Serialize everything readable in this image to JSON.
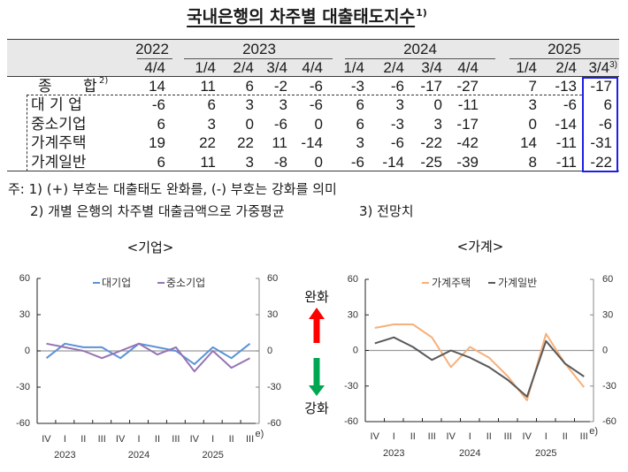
{
  "title": {
    "text": "국내은행의 차주별 대출태도지수",
    "note": "1)"
  },
  "table": {
    "years": [
      {
        "label": "2022"
      },
      {
        "label": "2023"
      },
      {
        "label": "2024"
      },
      {
        "label": "2025"
      }
    ],
    "quarters": [
      "4/4",
      "1/4",
      "2/4",
      "3/4",
      "4/4",
      "1/4",
      "2/4",
      "3/4",
      "4/4",
      "1/4",
      "2/4",
      "3/4"
    ],
    "last_quarter_note": "3)",
    "rows": [
      {
        "label": "종 합",
        "note": "2)",
        "values": [
          "14",
          "11",
          "6",
          "-2",
          "-6",
          "-3",
          "-6",
          "-17",
          "-27",
          "7",
          "-13",
          "-17"
        ]
      },
      {
        "label": "대 기 업",
        "values": [
          "-6",
          "6",
          "3",
          "3",
          "-6",
          "6",
          "3",
          "0",
          "-11",
          "3",
          "-6",
          "6"
        ]
      },
      {
        "label": "중소기업",
        "values": [
          "6",
          "3",
          "0",
          "-6",
          "0",
          "6",
          "-3",
          "3",
          "-17",
          "0",
          "-14",
          "-6"
        ]
      },
      {
        "label": "가계주택",
        "values": [
          "19",
          "22",
          "22",
          "11",
          "-14",
          "3",
          "-6",
          "-22",
          "-42",
          "14",
          "-11",
          "-31"
        ]
      },
      {
        "label": "가계일반",
        "values": [
          "6",
          "11",
          "3",
          "-8",
          "0",
          "-6",
          "-14",
          "-25",
          "-39",
          "8",
          "-11",
          "-22"
        ]
      }
    ],
    "highlight_color": "#1e1ee6"
  },
  "notes": {
    "prefix": "주:",
    "line1": "1) (+) 부호는 대출태도 완화를, (-) 부호는 강화를 의미",
    "line2a": "2) 개별 은행의 차주별 대출금액으로 가중평균",
    "line2b": "3) 전망치"
  },
  "indicator": {
    "up_label": "완화",
    "down_label": "강화",
    "up_color": "#ff0000",
    "down_color": "#00a651"
  },
  "chart_data": [
    {
      "type": "line",
      "title": "<기업>",
      "categories": [
        "IV",
        "I",
        "II",
        "III",
        "IV",
        "I",
        "II",
        "III",
        "IV",
        "I",
        "II",
        "III"
      ],
      "category_years": [
        {
          "label": "2023",
          "index": 1
        },
        {
          "label": "2024",
          "index": 5
        },
        {
          "label": "2025",
          "index": 9
        }
      ],
      "last_category_note": "e)",
      "xlabel": "",
      "ylabel": "",
      "ylim": [
        -60,
        60
      ],
      "yticks": [
        60,
        30,
        0,
        -30,
        -60
      ],
      "grid": false,
      "legend_position": "top",
      "series": [
        {
          "name": "대기업",
          "color": "#5b93d6",
          "values": [
            -6,
            6,
            3,
            3,
            -6,
            6,
            3,
            0,
            -11,
            3,
            -6,
            6
          ]
        },
        {
          "name": "중소기업",
          "color": "#9673b2",
          "values": [
            6,
            3,
            0,
            -6,
            0,
            6,
            -3,
            3,
            -17,
            0,
            -14,
            -6
          ]
        }
      ]
    },
    {
      "type": "line",
      "title": "<가계>",
      "categories": [
        "IV",
        "I",
        "II",
        "III",
        "IV",
        "I",
        "II",
        "III",
        "IV",
        "I",
        "II",
        "III"
      ],
      "category_years": [
        {
          "label": "2023",
          "index": 1
        },
        {
          "label": "2024",
          "index": 5
        },
        {
          "label": "2025",
          "index": 9
        }
      ],
      "last_category_note": "e)",
      "xlabel": "",
      "ylabel": "",
      "ylim": [
        -60,
        60
      ],
      "yticks": [
        60,
        30,
        0,
        -30,
        -60
      ],
      "grid": false,
      "legend_position": "top",
      "series": [
        {
          "name": "가계주택",
          "color": "#f5b07c",
          "values": [
            19,
            22,
            22,
            11,
            -14,
            3,
            -6,
            -22,
            -42,
            14,
            -11,
            -31
          ]
        },
        {
          "name": "가계일반",
          "color": "#595959",
          "values": [
            6,
            11,
            3,
            -8,
            0,
            -6,
            -14,
            -25,
            -39,
            8,
            -11,
            -22
          ]
        }
      ]
    }
  ]
}
